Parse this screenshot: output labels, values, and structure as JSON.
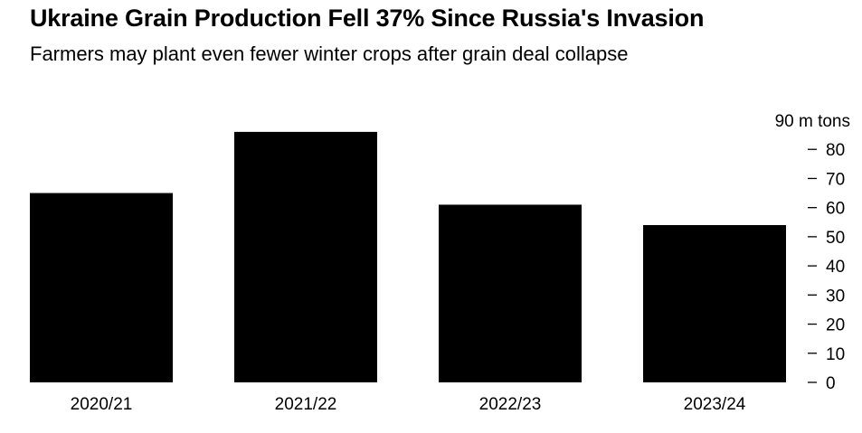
{
  "header": {
    "title": "Ukraine Grain Production Fell 37% Since Russia's Invasion",
    "subtitle": "Farmers may plant even fewer winter crops after grain deal collapse"
  },
  "chart_data": {
    "type": "bar",
    "title": "Ukraine Grain Production Fell 37% Since Russia's Invasion",
    "subtitle": "Farmers may plant even fewer winter crops after grain deal collapse",
    "categories": [
      "2020/21",
      "2021/22",
      "2022/23",
      "2023/24"
    ],
    "values": [
      65,
      86,
      61,
      54
    ],
    "xlabel": "",
    "ylabel": "",
    "unit_label": "90 m tons",
    "ylim": [
      0,
      90
    ],
    "yticks": [
      0,
      10,
      20,
      30,
      40,
      50,
      60,
      70,
      80
    ],
    "ytick_labels": [
      "0",
      "10",
      "20",
      "30",
      "40",
      "50",
      "60",
      "70",
      "80"
    ],
    "y_axis_position": "right",
    "grid": false,
    "legend": "none",
    "colors": {
      "bar": "#000000",
      "background": "#ffffff",
      "text": "#000000"
    }
  }
}
